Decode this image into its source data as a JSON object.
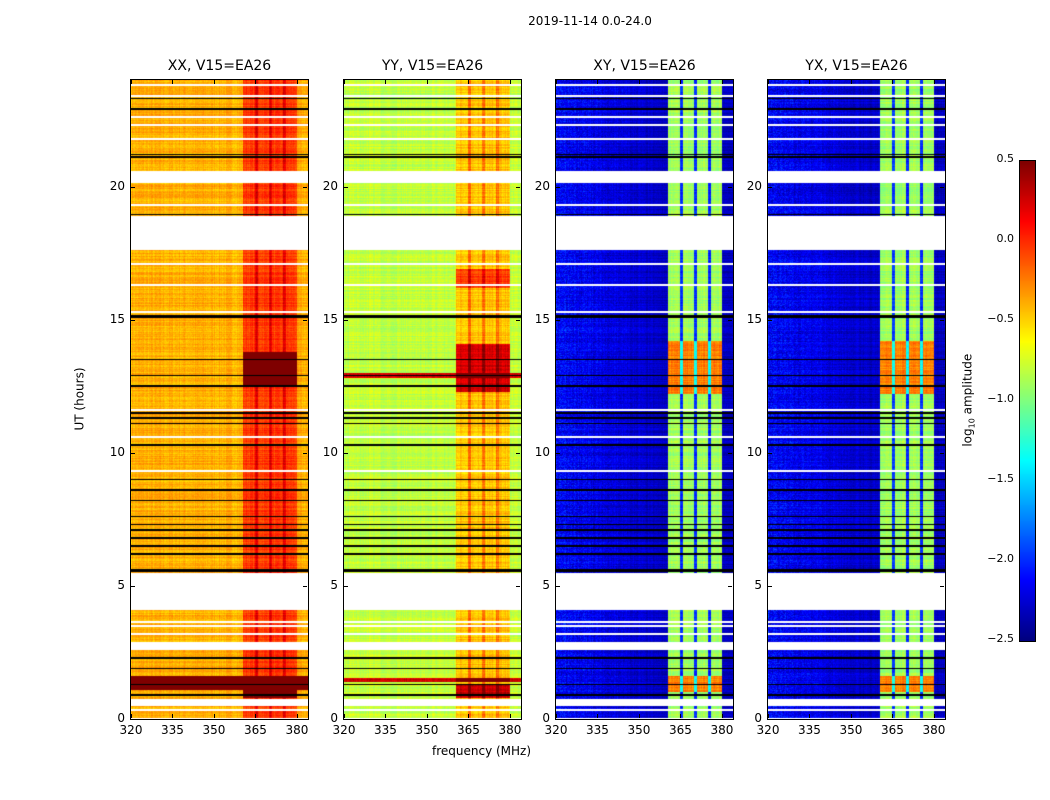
{
  "suptitle": "2019-11-14 0.0-24.0",
  "xlabel": "frequency (MHz)",
  "ylabel": "UT (hours)",
  "colorbar_label": "log10 amplitude",
  "chart_data": {
    "type": "heatmap",
    "title": "2019-11-14 0.0-24.0",
    "xlabel": "frequency (MHz)",
    "ylabel": "UT (hours)",
    "xlim": [
      320,
      384
    ],
    "ylim": [
      0,
      24
    ],
    "xticks": [
      "320",
      "335",
      "350",
      "365",
      "380"
    ],
    "yticks": [
      "0",
      "5",
      "10",
      "15",
      "20"
    ],
    "colorbar": {
      "label": "log10 amplitude",
      "range": [
        -2.5,
        0.5
      ],
      "ticks": [
        "0.5",
        "0.0",
        "−0.5",
        "−1.0",
        "−1.5",
        "−2.0",
        "−2.5"
      ],
      "colormap": "jet"
    },
    "data_time_ranges": [
      [
        0.05,
        0.5
      ],
      [
        0.75,
        2.6
      ],
      [
        2.9,
        4.1
      ],
      [
        5.5,
        17.6
      ],
      [
        18.9,
        20.15
      ],
      [
        20.6,
        24
      ]
    ],
    "white_gap_hours": [
      0.35,
      3.2,
      3.5,
      3.65,
      9.3,
      10.6,
      11.6,
      15.3,
      16.3,
      17.1,
      19.3,
      21.8,
      22.3,
      22.6,
      23.4,
      23.8
    ],
    "black_line_hours": [
      0.9,
      1.3,
      1.9,
      2.3,
      5.55,
      5.6,
      6.2,
      6.5,
      6.8,
      7.1,
      7.3,
      7.6,
      8.2,
      8.6,
      9.0,
      10.3,
      11.1,
      11.3,
      11.5,
      12.5,
      12.9,
      13.5,
      15.1,
      15.15,
      18.95,
      21.1,
      21.2,
      22.9,
      23.3
    ],
    "band_MHz": [
      360.5,
      380
    ],
    "subband_edges_MHz": [
      365.5,
      370.5,
      375.5
    ],
    "series": [
      {
        "name": "XX, V15=EA26",
        "base": -0.4,
        "band": -0.05,
        "events": [
          [
            1.1,
            1.6,
            0.45,
            "full"
          ],
          [
            12.5,
            13.8,
            0.45,
            "band"
          ],
          [
            0.8,
            1.2,
            0.3,
            "band"
          ]
        ]
      },
      {
        "name": "YY, V15=EA26",
        "base": -0.8,
        "band": -0.45,
        "events": [
          [
            1.4,
            1.55,
            0.45,
            "full"
          ],
          [
            12.8,
            13.0,
            0.45,
            "full"
          ],
          [
            12.3,
            14.1,
            0.4,
            "band"
          ],
          [
            0.8,
            1.3,
            0.45,
            "band"
          ],
          [
            16.2,
            16.9,
            0.1,
            "band"
          ]
        ]
      },
      {
        "name": "XY, V15=EA26",
        "base": -2.3,
        "band": -0.9,
        "events": [
          [
            12.2,
            14.2,
            0.35,
            "band"
          ],
          [
            1.0,
            1.6,
            0.35,
            "band"
          ],
          [
            1.45,
            1.5,
            -0.1,
            "full"
          ],
          [
            22.5,
            22.6,
            -0.1,
            "full"
          ]
        ]
      },
      {
        "name": "YX, V15=EA26",
        "base": -2.3,
        "band": -0.9,
        "events": [
          [
            12.2,
            14.2,
            0.35,
            "band"
          ],
          [
            1.0,
            1.6,
            0.35,
            "band"
          ],
          [
            1.45,
            1.5,
            -0.1,
            "full"
          ],
          [
            22.5,
            22.6,
            -0.1,
            "full"
          ]
        ]
      }
    ]
  }
}
